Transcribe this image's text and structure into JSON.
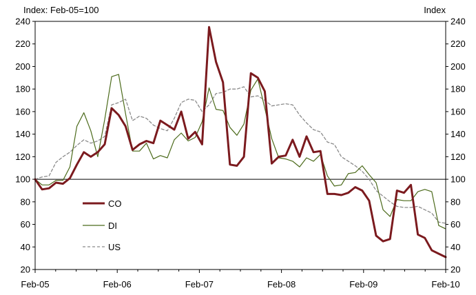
{
  "chart_data": {
    "type": "line",
    "left_axis_title": "Index: Feb-05=100",
    "right_axis_title": "Index",
    "ylim": [
      20,
      240
    ],
    "yticks": [
      20,
      40,
      60,
      80,
      100,
      120,
      140,
      160,
      180,
      200,
      220,
      240
    ],
    "x_tick_labels": [
      "Feb-05",
      "Feb-06",
      "Feb-07",
      "Feb-08",
      "Feb-09",
      "Feb-10"
    ],
    "x_ticks_at_month": [
      0,
      12,
      24,
      36,
      48,
      60
    ],
    "x_month_range": [
      0,
      60
    ],
    "reference_line": 100,
    "grid": false,
    "legend_position": "lower-left inside",
    "series": [
      {
        "name": "CO",
        "color": "#7b1a1e",
        "style": "solid-thick",
        "values": [
          100,
          91,
          92,
          97,
          96,
          101,
          113,
          124,
          120,
          124,
          131,
          163,
          157,
          147,
          126,
          131,
          134,
          132,
          152,
          148,
          144,
          160,
          136,
          142,
          131,
          235,
          204,
          186,
          113,
          112,
          120,
          194,
          190,
          178,
          114,
          120,
          121,
          135,
          120,
          138,
          124,
          125,
          87,
          87,
          86,
          88,
          93,
          90,
          81,
          50,
          45,
          47,
          90,
          88,
          95,
          51,
          48,
          37,
          34,
          31
        ]
      },
      {
        "name": "DI",
        "color": "#4b6a1a",
        "style": "solid-thin",
        "values": [
          100,
          95,
          95,
          99,
          99,
          111,
          147,
          159,
          143,
          120,
          153,
          191,
          193,
          158,
          125,
          125,
          132,
          118,
          121,
          119,
          135,
          141,
          134,
          137,
          151,
          181,
          162,
          161,
          146,
          139,
          149,
          179,
          189,
          163,
          136,
          119,
          118,
          116,
          111,
          119,
          116,
          122,
          103,
          94,
          95,
          105,
          106,
          112,
          104,
          97,
          73,
          67,
          82,
          81,
          81,
          89,
          91,
          89,
          59,
          56
        ]
      },
      {
        "name": "US",
        "color": "#8a8a8a",
        "style": "dashed",
        "values": [
          100,
          102,
          103,
          115,
          120,
          124,
          130,
          135,
          132,
          134,
          138,
          166,
          168,
          171,
          152,
          156,
          154,
          148,
          145,
          143,
          154,
          168,
          171,
          170,
          160,
          166,
          176,
          177,
          180,
          180,
          182,
          173,
          174,
          170,
          165,
          166,
          167,
          166,
          157,
          150,
          144,
          142,
          133,
          131,
          120,
          116,
          112,
          107,
          100,
          90,
          85,
          80,
          76,
          75,
          75,
          76,
          73,
          70,
          62,
          61
        ]
      }
    ]
  }
}
